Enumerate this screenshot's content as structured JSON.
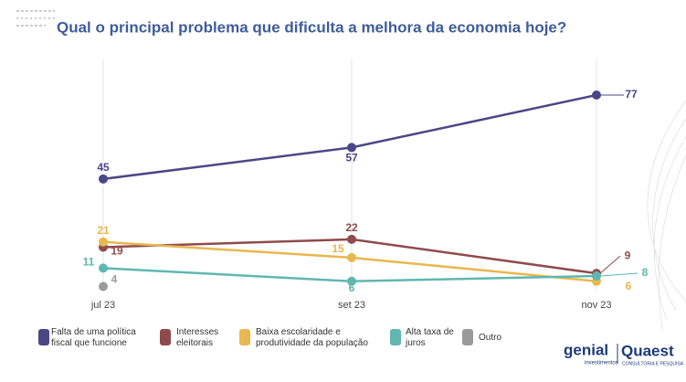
{
  "chart_data": {
    "type": "line",
    "title": "Qual o principal problema que dificulta a melhora da economia hoje?",
    "categories": [
      "jul 23",
      "set 23",
      "nov 23"
    ],
    "series": [
      {
        "name": "Falta de uma política fiscal que funcione",
        "color": "#4b4787",
        "values": [
          45,
          57,
          77
        ]
      },
      {
        "name": "Interesses eleitorais",
        "color": "#8e4b4e",
        "values": [
          19,
          22,
          9
        ]
      },
      {
        "name": "Baixa escolaridade e produtividade da população",
        "color": "#e8b74f",
        "values": [
          21,
          15,
          6
        ]
      },
      {
        "name": "Alta taxa de juros",
        "color": "#5fb7b0",
        "values": [
          11,
          6,
          8
        ]
      },
      {
        "name": "Outro",
        "color": "#9a9a9a",
        "values": [
          4,
          null,
          null
        ]
      }
    ],
    "grid": true
  },
  "branding": {
    "left": "genial",
    "left_sub": "investimentos",
    "right": "Quaest",
    "right_sub": "CONSULTORIA E PESQUISA"
  }
}
